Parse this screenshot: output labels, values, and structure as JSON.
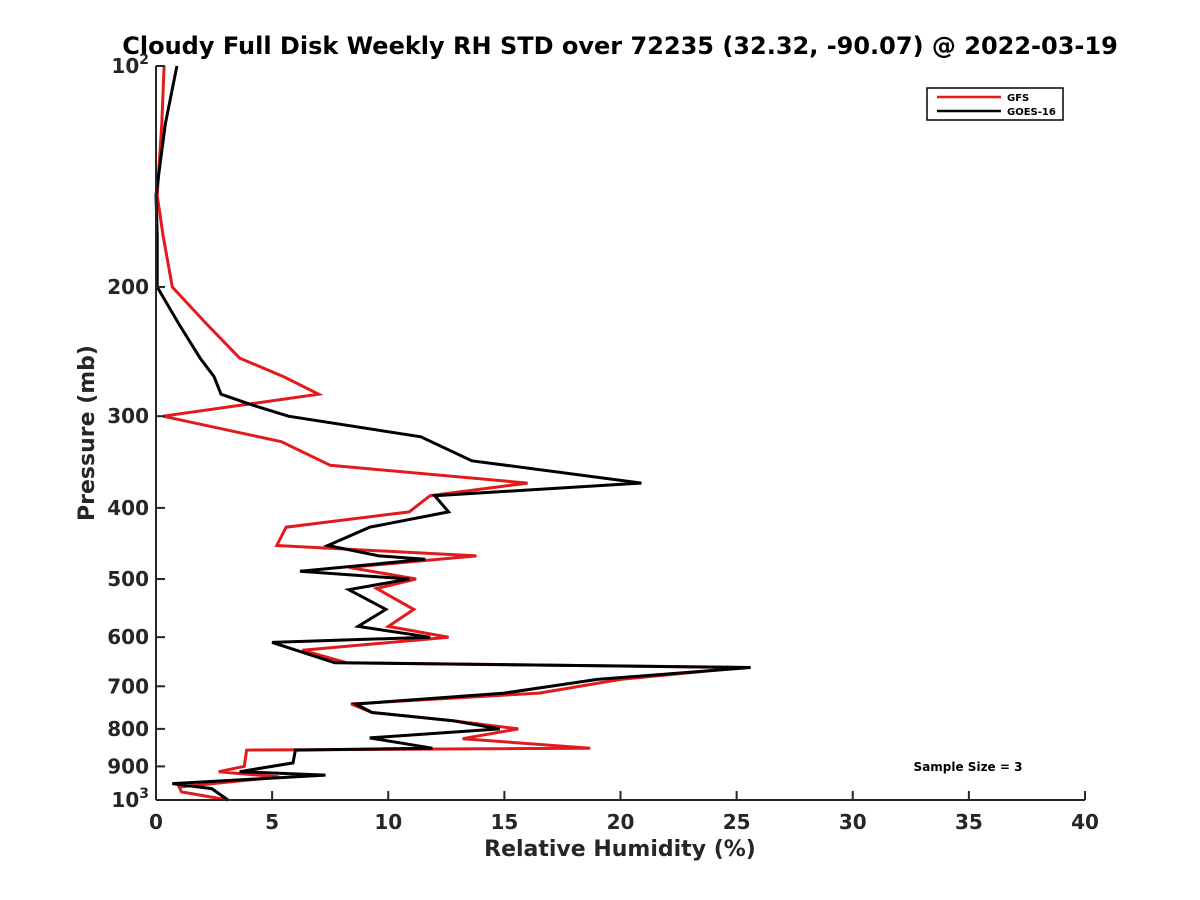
{
  "chart_data": {
    "type": "line",
    "title": "Cloudy Full Disk Weekly RH STD over 72235 (32.32, -90.07) @ 2022-03-19",
    "xlabel": "Relative Humidity (%)",
    "ylabel": "Pressure (mb)",
    "xlim": [
      0,
      40
    ],
    "ylim": [
      100,
      1000
    ],
    "yscale": "log",
    "y_reversed": true,
    "grid": false,
    "legend_position": "top-right",
    "x_ticks": [
      0,
      5,
      10,
      15,
      20,
      25,
      30,
      35,
      40
    ],
    "x_tick_labels": [
      "0",
      "5",
      "10",
      "15",
      "20",
      "25",
      "30",
      "35",
      "40"
    ],
    "y_ticks": [
      200,
      300,
      400,
      500,
      600,
      700,
      800,
      900
    ],
    "y_tick_labels": [
      "200",
      "300",
      "400",
      "500",
      "600",
      "700",
      "800",
      "900"
    ],
    "y_end_labels": [
      {
        "value": 100,
        "base": "10",
        "exp": "2"
      },
      {
        "value": 1000,
        "base": "10",
        "exp": "3"
      }
    ],
    "series": [
      {
        "name": "GFS",
        "color": "#e31a1c",
        "x": [
          0.35,
          0.25,
          0.05,
          0.3,
          0.7,
          2.2,
          3.6,
          5.5,
          7.0,
          0.3,
          5.4,
          7.5,
          16.0,
          11.8,
          10.9,
          5.6,
          5.2,
          13.8,
          8.3,
          11.2,
          9.5,
          11.1,
          10.0,
          12.6,
          6.3,
          8.2,
          25.3,
          20.0,
          16.5,
          8.4,
          9.3,
          12.8,
          15.6,
          13.2,
          18.7,
          3.9,
          3.8,
          2.7,
          5.3,
          1.0,
          1.1,
          3.1
        ],
        "y": [
          100,
          120,
          150,
          170,
          200,
          225,
          250,
          265,
          280,
          300,
          325,
          350,
          370,
          385,
          405,
          425,
          450,
          465,
          482,
          500,
          515,
          550,
          580,
          600,
          625,
          650,
          660,
          685,
          715,
          740,
          760,
          780,
          800,
          825,
          850,
          855,
          900,
          915,
          930,
          960,
          975,
          1000
        ]
      },
      {
        "name": "GOES-16",
        "color": "#000000",
        "x": [
          0.9,
          0.4,
          0.0,
          0.05,
          0.05,
          1.0,
          1.9,
          2.5,
          2.8,
          4.2,
          5.7,
          11.4,
          13.6,
          20.9,
          12.0,
          12.6,
          9.2,
          7.4,
          9.6,
          11.6,
          6.2,
          10.9,
          8.3,
          9.9,
          8.7,
          11.8,
          5.0,
          7.7,
          25.6,
          19.0,
          15.0,
          8.6,
          9.3,
          12.8,
          14.8,
          9.2,
          11.9,
          6.0,
          5.9,
          3.6,
          7.3,
          0.7,
          2.4,
          3.1
        ],
        "y": [
          100,
          120,
          150,
          170,
          200,
          225,
          250,
          265,
          280,
          290,
          300,
          320,
          345,
          370,
          385,
          405,
          425,
          450,
          465,
          470,
          488,
          500,
          517,
          550,
          580,
          600,
          610,
          650,
          660,
          685,
          715,
          740,
          760,
          780,
          800,
          823,
          850,
          855,
          890,
          915,
          925,
          950,
          965,
          1000
        ]
      }
    ],
    "annotation": "Sample Size = 3"
  }
}
